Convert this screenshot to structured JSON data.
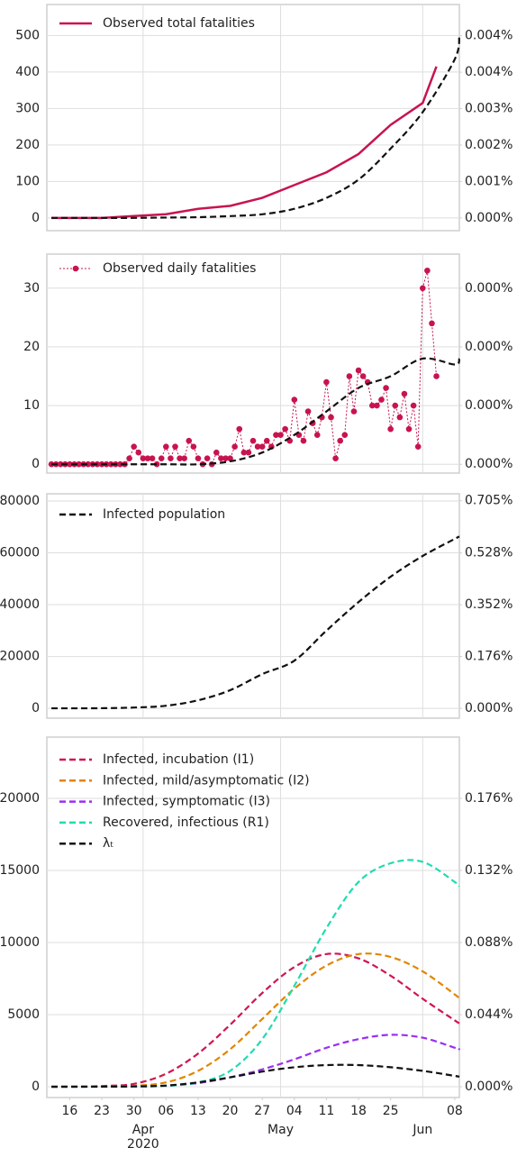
{
  "chart_data": [
    {
      "type": "line",
      "grid": true,
      "legend": "upper left",
      "ylim": [
        -35,
        585
      ],
      "yticks": [
        0,
        100,
        200,
        300,
        400,
        500
      ],
      "y2lim": [
        -0.000308,
        0.005154
      ],
      "y2ticks": [
        {
          "value": 0,
          "label": "0.000%"
        },
        {
          "value": 0.00088,
          "label": "0.001%"
        },
        {
          "value": 0.00176,
          "label": "0.002%"
        },
        {
          "value": 0.00264,
          "label": "0.003%"
        },
        {
          "value": 0.00352,
          "label": "0.004%"
        },
        {
          "value": 0.0044,
          "label": "0.004%"
        }
      ],
      "series": [
        {
          "name": "Observed total fatalities",
          "color": "#c8144e",
          "style": "solid",
          "legend": true,
          "x": [
            "2020-03-12",
            "2020-03-16",
            "2020-03-23",
            "2020-03-30",
            "2020-04-06",
            "2020-04-13",
            "2020-04-20",
            "2020-04-27",
            "2020-05-04",
            "2020-05-11",
            "2020-05-18",
            "2020-05-25",
            "2020-06-01",
            "2020-06-04"
          ],
          "values": [
            0,
            0,
            0,
            5,
            10,
            25,
            33,
            55,
            90,
            125,
            175,
            255,
            315,
            415
          ]
        },
        {
          "color": "#111111",
          "style": "dashed",
          "legend": false,
          "x": [
            "2020-03-12",
            "2020-03-16",
            "2020-03-23",
            "2020-03-30",
            "2020-04-06",
            "2020-04-13",
            "2020-04-20",
            "2020-04-27",
            "2020-05-04",
            "2020-05-11",
            "2020-05-18",
            "2020-05-25",
            "2020-06-01",
            "2020-06-08",
            "2020-06-09"
          ],
          "values": [
            0,
            0,
            0,
            0,
            1,
            2,
            5,
            10,
            25,
            55,
            105,
            190,
            290,
            435,
            500
          ]
        }
      ]
    },
    {
      "type": "line",
      "grid": true,
      "legend": "upper left",
      "ylim": [
        -1.5,
        35.8
      ],
      "yticks": [
        0,
        10,
        20,
        30
      ],
      "y2lim": [
        -1.32e-05,
        0.000315
      ],
      "y2ticks": [
        {
          "value": 0,
          "label": "0.000%"
        },
        {
          "value": 8.8e-05,
          "label": "0.000%"
        },
        {
          "value": 0.000176,
          "label": "0.000%"
        },
        {
          "value": 0.000264,
          "label": "0.000%"
        }
      ],
      "series": [
        {
          "name": "Observed daily fatalities",
          "color": "#c8144e",
          "style": "dotted",
          "marker": true,
          "legend": true,
          "x": [
            "2020-03-12",
            "2020-03-13",
            "2020-03-14",
            "2020-03-15",
            "2020-03-16",
            "2020-03-17",
            "2020-03-18",
            "2020-03-19",
            "2020-03-20",
            "2020-03-21",
            "2020-03-22",
            "2020-03-23",
            "2020-03-24",
            "2020-03-25",
            "2020-03-26",
            "2020-03-27",
            "2020-03-28",
            "2020-03-29",
            "2020-03-30",
            "2020-03-31",
            "2020-04-01",
            "2020-04-02",
            "2020-04-03",
            "2020-04-04",
            "2020-04-05",
            "2020-04-06",
            "2020-04-07",
            "2020-04-08",
            "2020-04-09",
            "2020-04-10",
            "2020-04-11",
            "2020-04-12",
            "2020-04-13",
            "2020-04-14",
            "2020-04-15",
            "2020-04-16",
            "2020-04-17",
            "2020-04-18",
            "2020-04-19",
            "2020-04-20",
            "2020-04-21",
            "2020-04-22",
            "2020-04-23",
            "2020-04-24",
            "2020-04-25",
            "2020-04-26",
            "2020-04-27",
            "2020-04-28",
            "2020-04-29",
            "2020-04-30",
            "2020-05-01",
            "2020-05-02",
            "2020-05-03",
            "2020-05-04",
            "2020-05-05",
            "2020-05-06",
            "2020-05-07",
            "2020-05-08",
            "2020-05-09",
            "2020-05-10",
            "2020-05-11",
            "2020-05-12",
            "2020-05-13",
            "2020-05-14",
            "2020-05-15",
            "2020-05-16",
            "2020-05-17",
            "2020-05-18",
            "2020-05-19",
            "2020-05-20",
            "2020-05-21",
            "2020-05-22",
            "2020-05-23",
            "2020-05-24",
            "2020-05-25",
            "2020-05-26",
            "2020-05-27",
            "2020-05-28",
            "2020-05-29",
            "2020-05-30",
            "2020-05-31",
            "2020-06-01",
            "2020-06-02",
            "2020-06-03",
            "2020-06-04"
          ],
          "values": [
            0,
            0,
            0,
            0,
            0,
            0,
            0,
            0,
            0,
            0,
            0,
            0,
            0,
            0,
            0,
            0,
            0,
            1,
            3,
            2,
            1,
            1,
            1,
            0,
            1,
            3,
            1,
            3,
            1,
            1,
            4,
            3,
            1,
            0,
            1,
            0,
            2,
            1,
            1,
            1,
            3,
            6,
            2,
            2,
            4,
            3,
            3,
            4,
            3,
            5,
            5,
            6,
            4,
            11,
            5,
            4,
            9,
            7,
            5,
            8,
            14,
            8,
            1,
            4,
            5,
            15,
            9,
            16,
            15,
            14,
            10,
            10,
            11,
            13,
            6,
            10,
            8,
            12,
            6,
            10,
            3,
            30,
            33,
            24,
            15
          ]
        },
        {
          "color": "#111111",
          "style": "dashed",
          "legend": false,
          "x": [
            "2020-03-12",
            "2020-03-16",
            "2020-03-23",
            "2020-03-30",
            "2020-04-06",
            "2020-04-13",
            "2020-04-20",
            "2020-04-27",
            "2020-05-04",
            "2020-05-11",
            "2020-05-18",
            "2020-05-25",
            "2020-06-01",
            "2020-06-08",
            "2020-06-09"
          ],
          "values": [
            0,
            0,
            0,
            0,
            0,
            0,
            0.5,
            2,
            5,
            9,
            13,
            15,
            18,
            17,
            18
          ]
        }
      ]
    },
    {
      "type": "line",
      "grid": true,
      "legend": "upper left",
      "ylim": [
        -3800,
        82800
      ],
      "yticks": [
        0,
        20000,
        40000,
        60000,
        80000
      ],
      "y2lim": [
        -0.0334,
        0.7286
      ],
      "y2ticks": [
        {
          "value": 0,
          "label": "0.000%"
        },
        {
          "value": 0.176,
          "label": "0.176%"
        },
        {
          "value": 0.352,
          "label": "0.352%"
        },
        {
          "value": 0.528,
          "label": "0.528%"
        },
        {
          "value": 0.705,
          "label": "0.705%"
        }
      ],
      "series": [
        {
          "name": "Infected population",
          "color": "#111111",
          "style": "dashed",
          "legend": true,
          "x": [
            "2020-03-12",
            "2020-03-16",
            "2020-03-23",
            "2020-03-30",
            "2020-04-06",
            "2020-04-13",
            "2020-04-20",
            "2020-04-27",
            "2020-05-04",
            "2020-05-11",
            "2020-05-18",
            "2020-05-25",
            "2020-06-01",
            "2020-06-08",
            "2020-06-09"
          ],
          "values": [
            0,
            0,
            50,
            300,
            1000,
            3100,
            7000,
            13200,
            18400,
            30000,
            41000,
            50800,
            58800,
            65400,
            66300
          ]
        }
      ]
    },
    {
      "type": "line",
      "grid": true,
      "legend": "upper left",
      "ylim": [
        -750,
        24250
      ],
      "yticks": [
        0,
        5000,
        10000,
        15000,
        20000
      ],
      "y2lim": [
        -0.0066,
        0.2134
      ],
      "y2ticks": [
        {
          "value": 0,
          "label": "0.000%"
        },
        {
          "value": 0.044,
          "label": "0.044%"
        },
        {
          "value": 0.088,
          "label": "0.088%"
        },
        {
          "value": 0.132,
          "label": "0.132%"
        },
        {
          "value": 0.176,
          "label": "0.176%"
        }
      ],
      "xlim": [
        "2020-03-11",
        "2020-06-09"
      ],
      "xticks": [
        {
          "value": "2020-03-16",
          "label": "16"
        },
        {
          "value": "2020-03-23",
          "label": "23"
        },
        {
          "value": "2020-03-30",
          "label": "30"
        },
        {
          "value": "2020-04-06",
          "label": "06"
        },
        {
          "value": "2020-04-13",
          "label": "13"
        },
        {
          "value": "2020-04-20",
          "label": "20"
        },
        {
          "value": "2020-04-27",
          "label": "27"
        },
        {
          "value": "2020-05-04",
          "label": "04"
        },
        {
          "value": "2020-05-11",
          "label": "11"
        },
        {
          "value": "2020-05-18",
          "label": "18"
        },
        {
          "value": "2020-05-25",
          "label": "25"
        },
        {
          "value": "2020-06-08",
          "label": "08"
        }
      ],
      "xticks_major": [
        {
          "value": "2020-04-01",
          "label": "Apr"
        },
        {
          "value": "2020-05-01",
          "label": "May"
        },
        {
          "value": "2020-06-01",
          "label": "Jun"
        }
      ],
      "x_year": "2020",
      "series": [
        {
          "name": "Infected, incubation (I1)",
          "color": "#d0164f",
          "style": "dashed",
          "legend": true,
          "x": [
            "2020-03-12",
            "2020-03-16",
            "2020-03-23",
            "2020-03-30",
            "2020-04-06",
            "2020-04-13",
            "2020-04-20",
            "2020-04-27",
            "2020-05-04",
            "2020-05-11",
            "2020-05-18",
            "2020-05-25",
            "2020-06-01",
            "2020-06-08",
            "2020-06-09"
          ],
          "values": [
            0,
            10,
            50,
            200,
            900,
            2300,
            4300,
            6500,
            8300,
            9200,
            8900,
            7700,
            6100,
            4600,
            4400
          ]
        },
        {
          "name": "Infected, mild/asymptomatic (I2)",
          "color": "#e08600",
          "style": "dashed",
          "legend": true,
          "x": [
            "2020-03-12",
            "2020-03-16",
            "2020-03-23",
            "2020-03-30",
            "2020-04-06",
            "2020-04-13",
            "2020-04-20",
            "2020-04-27",
            "2020-05-04",
            "2020-05-11",
            "2020-05-18",
            "2020-05-25",
            "2020-06-01",
            "2020-06-08",
            "2020-06-09"
          ],
          "values": [
            0,
            2,
            15,
            60,
            300,
            1100,
            2600,
            4700,
            6800,
            8400,
            9200,
            9000,
            8000,
            6400,
            6100
          ]
        },
        {
          "name": "Infected, symptomatic (I3)",
          "color": "#9b2ff0",
          "style": "dashed",
          "legend": true,
          "x": [
            "2020-03-12",
            "2020-03-16",
            "2020-03-23",
            "2020-03-30",
            "2020-04-06",
            "2020-04-13",
            "2020-04-20",
            "2020-04-27",
            "2020-05-04",
            "2020-05-11",
            "2020-05-18",
            "2020-05-25",
            "2020-06-01",
            "2020-06-08",
            "2020-06-09"
          ],
          "values": [
            0,
            0,
            3,
            15,
            60,
            250,
            650,
            1200,
            1900,
            2700,
            3300,
            3600,
            3400,
            2700,
            2600
          ]
        },
        {
          "name": "Recovered, infectious (R1)",
          "color": "#1fdcb0",
          "style": "dashed",
          "legend": true,
          "x": [
            "2020-03-12",
            "2020-03-16",
            "2020-03-23",
            "2020-03-30",
            "2020-04-06",
            "2020-04-13",
            "2020-04-20",
            "2020-04-27",
            "2020-05-04",
            "2020-05-11",
            "2020-05-18",
            "2020-05-25",
            "2020-06-01",
            "2020-06-08",
            "2020-06-09"
          ],
          "values": [
            0,
            0,
            2,
            10,
            60,
            300,
            1100,
            3300,
            7000,
            11000,
            14200,
            15500,
            15600,
            14200,
            13900
          ]
        },
        {
          "name": "λₜ",
          "color": "#111111",
          "style": "dashed",
          "legend": true,
          "x": [
            "2020-03-12",
            "2020-03-16",
            "2020-03-23",
            "2020-03-30",
            "2020-04-06",
            "2020-04-13",
            "2020-04-20",
            "2020-04-27",
            "2020-05-04",
            "2020-05-11",
            "2020-05-18",
            "2020-05-25",
            "2020-06-01",
            "2020-06-08",
            "2020-06-09"
          ],
          "values": [
            0,
            1,
            5,
            20,
            80,
            300,
            650,
            1050,
            1350,
            1500,
            1500,
            1350,
            1100,
            750,
            690
          ]
        }
      ]
    }
  ]
}
